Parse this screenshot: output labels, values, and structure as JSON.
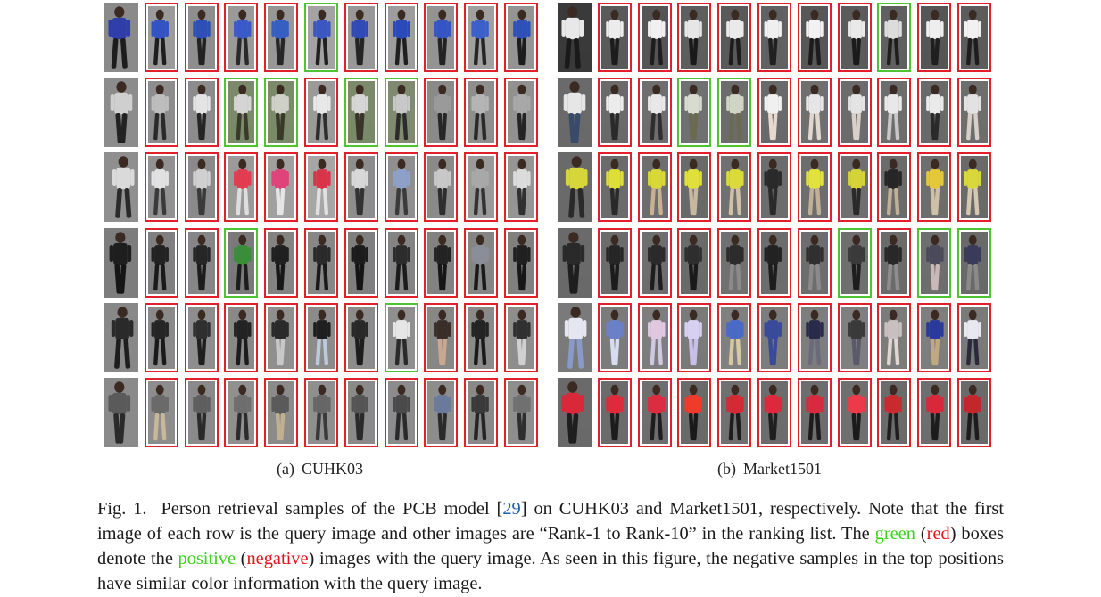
{
  "colors": {
    "positive": "#4fc432",
    "negative": "#e0212b",
    "ref_link": "#1f5fb0"
  },
  "panels": [
    {
      "label": "(a)",
      "name": "CUHK03",
      "rows": [
        {
          "query_tone": [
            "#2f3ea8",
            "#1d1d1d",
            "#8a8a8a"
          ],
          "results": [
            "neg",
            "neg",
            "neg",
            "neg",
            "pos",
            "neg",
            "neg",
            "neg",
            "neg",
            "neg"
          ],
          "tones": [
            [
              "#3453c2",
              "#1e1e1e",
              "#9b9b9b"
            ],
            [
              "#2e4fb8",
              "#222",
              "#8e8e8e"
            ],
            [
              "#3a5ac8",
              "#2a2a2a",
              "#9a9a9a"
            ],
            [
              "#355fc0",
              "#272727",
              "#979797"
            ],
            [
              "#3c58c0",
              "#202020",
              "#a3a3a3"
            ],
            [
              "#324ab5",
              "#252525",
              "#989898"
            ],
            [
              "#2b4ab9",
              "#1f1f1f",
              "#9d9d9d"
            ],
            [
              "#3655c4",
              "#232323",
              "#939393"
            ],
            [
              "#3b60c9",
              "#262626",
              "#a0a0a0"
            ],
            [
              "#2f50b7",
              "#1c1c1c",
              "#949494"
            ]
          ]
        },
        {
          "query_tone": [
            "#cfcfcf",
            "#222222",
            "#8c8c8c"
          ],
          "results": [
            "neg",
            "neg",
            "pos",
            "pos",
            "neg",
            "pos",
            "pos",
            "neg",
            "neg",
            "neg"
          ],
          "tones": [
            [
              "#bdbdbd",
              "#2a2a2a",
              "#8d8d8d"
            ],
            [
              "#e4e4e4",
              "#252525",
              "#8c8c8c"
            ],
            [
              "#d5d5d5",
              "#3a3a2a",
              "#7a8a6a"
            ],
            [
              "#cfd0c8",
              "#3a3a2a",
              "#7a8a6a"
            ],
            [
              "#e8e8e8",
              "#2e2e2e",
              "#9a9a9a"
            ],
            [
              "#d6d6d6",
              "#3a332a",
              "#7a8a6a"
            ],
            [
              "#c8c8c8",
              "#2b2b2b",
              "#808a70"
            ],
            [
              "#9a9a9a",
              "#262626",
              "#8a8a8a"
            ],
            [
              "#b5b5b5",
              "#2a2a2a",
              "#8e8e8e"
            ],
            [
              "#a8a8a8",
              "#242424",
              "#919191"
            ]
          ]
        },
        {
          "query_tone": [
            "#dadada",
            "#2a2a2a",
            "#8f8f8f"
          ],
          "results": [
            "neg",
            "neg",
            "neg",
            "neg",
            "neg",
            "neg",
            "neg",
            "neg",
            "neg",
            "neg"
          ],
          "tones": [
            [
              "#e1e1e1",
              "#3a3a3a",
              "#929292"
            ],
            [
              "#d0d0d0",
              "#3a3a3a",
              "#8a8a8a"
            ],
            [
              "#e33c50",
              "#dedede",
              "#9a9a9a"
            ],
            [
              "#e0427a",
              "#e5e5e5",
              "#a0a0a0"
            ],
            [
              "#d9344a",
              "#e0e0e0",
              "#a6a6a6"
            ],
            [
              "#d8d8d8",
              "#333333",
              "#8d8d8d"
            ],
            [
              "#8ea0c8",
              "#3a3a3a",
              "#8f8f8f"
            ],
            [
              "#c8c8c8",
              "#2e2e2e",
              "#8a8a8a"
            ],
            [
              "#a8a8a8",
              "#333333",
              "#9a9a9a"
            ],
            [
              "#dcdcdc",
              "#303030",
              "#959595"
            ]
          ]
        },
        {
          "query_tone": [
            "#1e1e1e",
            "#161616",
            "#7d7d7d"
          ],
          "results": [
            "neg",
            "neg",
            "pos",
            "neg",
            "neg",
            "neg",
            "neg",
            "neg",
            "neg",
            "neg"
          ],
          "tones": [
            [
              "#222",
              "#1a1a1a",
              "#808080"
            ],
            [
              "#262626",
              "#1c1c1c",
              "#868686"
            ],
            [
              "#3a8e3a",
              "#1d1d1d",
              "#7a7a7a"
            ],
            [
              "#202020",
              "#181818",
              "#838383"
            ],
            [
              "#2a2a2a",
              "#1a1a1a",
              "#878787"
            ],
            [
              "#1c1c1c",
              "#151515",
              "#7f7f7f"
            ],
            [
              "#2c2c2c",
              "#1b1b1b",
              "#848484"
            ],
            [
              "#232323",
              "#161616",
              "#828282"
            ],
            [
              "#8a8e98",
              "#1a1a1a",
              "#858585"
            ],
            [
              "#202020",
              "#171717",
              "#808080"
            ]
          ]
        },
        {
          "query_tone": [
            "#2a2a2a",
            "#1e1e1e",
            "#888888"
          ],
          "results": [
            "neg",
            "neg",
            "neg",
            "neg",
            "neg",
            "neg",
            "pos",
            "neg",
            "neg",
            "neg"
          ],
          "tones": [
            [
              "#252525",
              "#1a1a1a",
              "#8a8a8a"
            ],
            [
              "#2f2f2f",
              "#1f1f1f",
              "#8e8e8e"
            ],
            [
              "#232323",
              "#1c1c1c",
              "#898989"
            ],
            [
              "#2a2a2a",
              "#c8c8c8",
              "#8f8f8f"
            ],
            [
              "#1f1f1f",
              "#bcc8dc",
              "#8b8b8b"
            ],
            [
              "#282828",
              "#1d1d1d",
              "#8c8c8c"
            ],
            [
              "#e6e6e6",
              "#2a2a2a",
              "#8f8f8f"
            ],
            [
              "#3a2e28",
              "#c8a890",
              "#878787"
            ],
            [
              "#242424",
              "#1a1a1a",
              "#8a8a8a"
            ],
            [
              "#303030",
              "#d0d0d0",
              "#8d8d8d"
            ]
          ]
        },
        {
          "query_tone": [
            "#5a5a5a",
            "#2a2a2a",
            "#8a8a8a"
          ],
          "results": [
            "neg",
            "neg",
            "neg",
            "neg",
            "neg",
            "neg",
            "neg",
            "neg",
            "neg",
            "neg"
          ],
          "tones": [
            [
              "#6a6a6a",
              "#c8b89a",
              "#8d8d8d"
            ],
            [
              "#5e5e5e",
              "#2a2a2a",
              "#8a8a8a"
            ],
            [
              "#6e6e6e",
              "#2c2c2c",
              "#909090"
            ],
            [
              "#5a5a5a",
              "#c0b090",
              "#8b8b8b"
            ],
            [
              "#666666",
              "#3a3a3a",
              "#8f8f8f"
            ],
            [
              "#555555",
              "#2a2a2a",
              "#8a8a8a"
            ],
            [
              "#4a4a4a",
              "#2a2a2a",
              "#8c8c8c"
            ],
            [
              "#6a7a9a",
              "#2a2a2a",
              "#8d8d8d"
            ],
            [
              "#3a3a3a",
              "#252525",
              "#898989"
            ],
            [
              "#707070",
              "#2e2e2e",
              "#8e8e8e"
            ]
          ]
        }
      ]
    },
    {
      "label": "(b)",
      "name": "Market1501",
      "rows": [
        {
          "query_tone": [
            "#e8e8e8",
            "#1a1a1a",
            "#3a3a3a"
          ],
          "results": [
            "neg",
            "neg",
            "neg",
            "neg",
            "neg",
            "neg",
            "neg",
            "pos",
            "neg",
            "neg"
          ],
          "tones": [
            [
              "#ececec",
              "#1c1c1c",
              "#5a5a5a"
            ],
            [
              "#f0f0f0",
              "#1e1e1e",
              "#555555"
            ],
            [
              "#e6e6e6",
              "#1a1a1a",
              "#5e5e5e"
            ],
            [
              "#eaeaea",
              "#1d1d1d",
              "#595959"
            ],
            [
              "#efefef",
              "#202020",
              "#616161"
            ],
            [
              "#f2f2f2",
              "#1c1c1c",
              "#575757"
            ],
            [
              "#e9e9e9",
              "#1b1b1b",
              "#5b5b5b"
            ],
            [
              "#dcdcdc",
              "#1e1e1e",
              "#606060"
            ],
            [
              "#eeeeee",
              "#1f1f1f",
              "#565656"
            ],
            [
              "#f1f1f1",
              "#1d1d1d",
              "#5c5c5c"
            ]
          ]
        },
        {
          "query_tone": [
            "#e6e6e6",
            "#3a4a6a",
            "#6a6a6a"
          ],
          "results": [
            "neg",
            "neg",
            "pos",
            "pos",
            "neg",
            "neg",
            "neg",
            "neg",
            "neg",
            "neg"
          ],
          "tones": [
            [
              "#ececec",
              "#2a2a2a",
              "#6a6a6a"
            ],
            [
              "#e8e8e8",
              "#2e2e2e",
              "#6e6e6e"
            ],
            [
              "#d8dcd0",
              "#6a6a50",
              "#707070"
            ],
            [
              "#d0d4c4",
              "#6a6a50",
              "#6c6c6c"
            ],
            [
              "#f0f0f0",
              "#e8d8d0",
              "#6a6a6a"
            ],
            [
              "#e6e6e6",
              "#e0d8d0",
              "#6f6f6f"
            ],
            [
              "#e4e4e4",
              "#d8d0c8",
              "#6b6b6b"
            ],
            [
              "#e8e8e8",
              "#c8c8c8",
              "#6d6d6d"
            ],
            [
              "#eaeaea",
              "#2a2a2a",
              "#696969"
            ],
            [
              "#e2e2e2",
              "#d6d0c8",
              "#6e6e6e"
            ]
          ]
        },
        {
          "query_tone": [
            "#d6d63a",
            "#2a2a2a",
            "#6a6a6a"
          ],
          "results": [
            "neg",
            "neg",
            "neg",
            "neg",
            "neg",
            "neg",
            "neg",
            "neg",
            "neg",
            "neg"
          ],
          "tones": [
            [
              "#dede38",
              "#2a2a2a",
              "#6b6b6b"
            ],
            [
              "#d8d836",
              "#c8b090",
              "#6e6e6e"
            ],
            [
              "#e0e03c",
              "#c8b8a0",
              "#6a6a6a"
            ],
            [
              "#dada3a",
              "#d0c0a8",
              "#707070"
            ],
            [
              "#2a2a2a",
              "#2a2a2a",
              "#6c6c6c"
            ],
            [
              "#e2e23e",
              "#c0b098",
              "#6d6d6d"
            ],
            [
              "#d4d438",
              "#2a2a2a",
              "#6f6f6f"
            ],
            [
              "#262626",
              "#c0b098",
              "#6b6b6b"
            ],
            [
              "#e4c83a",
              "#cfc0a8",
              "#6e6e6e"
            ],
            [
              "#d8d83c",
              "#d6c8b0",
              "#6a6a6a"
            ]
          ]
        },
        {
          "query_tone": [
            "#2a2a2a",
            "#1e1e1e",
            "#6a6a6a"
          ],
          "results": [
            "neg",
            "neg",
            "neg",
            "neg",
            "neg",
            "neg",
            "pos",
            "neg",
            "pos",
            "pos"
          ],
          "tones": [
            [
              "#262626",
              "#1c1c1c",
              "#6b6b6b"
            ],
            [
              "#2a2a2a",
              "#1e1e1e",
              "#6e6e6e"
            ],
            [
              "#2e2e2e",
              "#1a1a1a",
              "#6a6a6a"
            ],
            [
              "#2c2c2c",
              "#8a8a8a",
              "#707070"
            ],
            [
              "#222222",
              "#1d1d1d",
              "#6c6c6c"
            ],
            [
              "#303030",
              "#8a8a8a",
              "#6d6d6d"
            ],
            [
              "#3a3a3a",
              "#1e1e1e",
              "#6f6f6f"
            ],
            [
              "#282828",
              "#8e8e8e",
              "#6b6b6b"
            ],
            [
              "#4a4a5a",
              "#c8b8b8",
              "#6e6e6e"
            ],
            [
              "#3a3a5a",
              "#8a8a8a",
              "#6a6a6a"
            ]
          ]
        },
        {
          "query_tone": [
            "#e6e6f0",
            "#8a9ac8",
            "#7a7a7a"
          ],
          "results": [
            "neg",
            "neg",
            "neg",
            "neg",
            "neg",
            "neg",
            "neg",
            "neg",
            "neg",
            "neg"
          ],
          "tones": [
            [
              "#6a80c8",
              "#d8dcf0",
              "#7b7b7b"
            ],
            [
              "#e0c8e0",
              "#d0c8e0",
              "#7e7e7e"
            ],
            [
              "#d8d0f0",
              "#c8c0e8",
              "#7a7a7a"
            ],
            [
              "#4a6ac8",
              "#d8c8a0",
              "#808080"
            ],
            [
              "#3a4a9a",
              "#3a4a9a",
              "#7c7c7c"
            ],
            [
              "#2a2a4a",
              "#6a6a7a",
              "#7d7d7d"
            ],
            [
              "#3a3a3a",
              "#5a5a6a",
              "#7f7f7f"
            ],
            [
              "#c8c0c0",
              "#e0d8d0",
              "#7b7b7b"
            ],
            [
              "#2a3a9a",
              "#c0a880",
              "#7e7e7e"
            ],
            [
              "#e8e8f0",
              "#2a2a3a",
              "#7a7a7a"
            ]
          ]
        },
        {
          "query_tone": [
            "#d8283a",
            "#1e1e1e",
            "#6a6a6a"
          ],
          "results": [
            "neg",
            "neg",
            "neg",
            "neg",
            "neg",
            "neg",
            "neg",
            "neg",
            "neg",
            "neg"
          ],
          "tones": [
            [
              "#e02a3c",
              "#1c1c1c",
              "#6b6b6b"
            ],
            [
              "#dc2c40",
              "#1e1e1e",
              "#6e6e6e"
            ],
            [
              "#f03a2a",
              "#1a1a1a",
              "#6a6a6a"
            ],
            [
              "#d42a36",
              "#1d1d1d",
              "#707070"
            ],
            [
              "#e0283c",
              "#1f1f1f",
              "#6c6c6c"
            ],
            [
              "#d82a3e",
              "#1c1c1c",
              "#6d6d6d"
            ],
            [
              "#ec3a4a",
              "#1b1b1b",
              "#6f6f6f"
            ],
            [
              "#c82a30",
              "#1e1e1e",
              "#6b6b6b"
            ],
            [
              "#d8283a",
              "#1d1d1d",
              "#6e6e6e"
            ],
            [
              "#c4262e",
              "#1c1c1c",
              "#6a6a6a"
            ]
          ]
        }
      ]
    }
  ],
  "caption": {
    "fig_label": "Fig. 1.",
    "part1": "Person retrieval samples of the PCB model [",
    "ref": "29",
    "part2": "] on CUHK03 and Market1501, respectively. Note that the first image of each row is the query image and other images are “Rank-1 to Rank-10” in the ranking list. The ",
    "green_word": "green",
    "part3": " (",
    "red_word": "red",
    "part4": ") boxes denote the ",
    "positive_word": "positive",
    "part5": " (",
    "negative_word": "negative",
    "part6": ") images with the query image. As seen in this figure, the negative samples in the top positions have similar color information with the query image."
  }
}
